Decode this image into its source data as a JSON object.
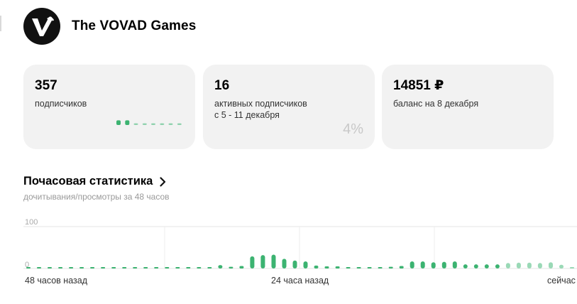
{
  "channel": {
    "name": "The VOVAD Games",
    "logo_icon": "vovad-logo-icon"
  },
  "cards": [
    {
      "value": "357",
      "label_lines": [
        "подписчиков"
      ]
    },
    {
      "value": "16",
      "label_lines": [
        "активных подписчиков",
        "с 5 - 11 декабря"
      ],
      "percent": "4%"
    },
    {
      "value": "14851 ₽",
      "label_lines": [
        "баланс на 8 декабря"
      ]
    }
  ],
  "subscriber_trend": [
    0.55,
    0.55,
    0.2,
    0.2,
    0.2,
    0.2,
    0.2,
    0.2
  ],
  "hourly": {
    "title": "Почасовая статистика",
    "subtitle": "дочитывания/просмотры за 48 часов",
    "chevron_icon": "chevron-right-icon"
  },
  "chart_data": {
    "type": "bar",
    "ytick_labels": [
      "100",
      "0"
    ],
    "ylim": [
      0,
      100
    ],
    "grid": true,
    "x_axis_labels": [
      "48 часов назад",
      "24 часа назад",
      "сейчас"
    ],
    "values": [
      1,
      1,
      1,
      1,
      1,
      1,
      1,
      1,
      1,
      1,
      1,
      1,
      1,
      1,
      1,
      1,
      2,
      3,
      8,
      4,
      6,
      29,
      32,
      33,
      23,
      19,
      17,
      7,
      5,
      5,
      3,
      3,
      2,
      3,
      4,
      6,
      17,
      17,
      15,
      16,
      17,
      10,
      10,
      10,
      10,
      13,
      14,
      14,
      13,
      15,
      9,
      2
    ],
    "bar_colors": [
      "#3cb371",
      "#3cb371",
      "#3cb371",
      "#3cb371",
      "#3cb371",
      "#3cb371",
      "#3cb371",
      "#3cb371",
      "#3cb371",
      "#3cb371",
      "#3cb371",
      "#3cb371",
      "#3cb371",
      "#3cb371",
      "#3cb371",
      "#3cb371",
      "#3cb371",
      "#3cb371",
      "#3cb371",
      "#3cb371",
      "#3cb371",
      "#3cb371",
      "#3cb371",
      "#3cb371",
      "#3cb371",
      "#3cb371",
      "#3cb371",
      "#3cb371",
      "#3cb371",
      "#3cb371",
      "#3cb371",
      "#3cb371",
      "#3cb371",
      "#3cb371",
      "#3cb371",
      "#3cb371",
      "#3cb371",
      "#3cb371",
      "#3cb371",
      "#3cb371",
      "#3cb371",
      "#3cb371",
      "#3cb371",
      "#3cb371",
      "#3cb371",
      "#9ad9b6",
      "#9ad9b6",
      "#9ad9b6",
      "#9ad9b6",
      "#9ad9b6",
      "#9ad9b6",
      "#9ad9b6"
    ]
  }
}
